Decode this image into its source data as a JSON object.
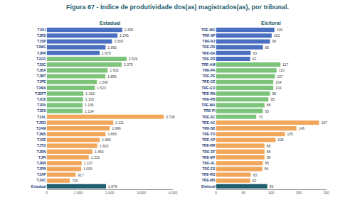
{
  "title": "Figura 67 - Índice de produtividade dos(as) magistrados(as), por tribunal.",
  "chart_data": [
    {
      "type": "bar",
      "title": "Estadual",
      "orientation": "horizontal",
      "data_labels": true,
      "grid": false,
      "categories": [
        "TJRJ",
        "TJRS",
        "TJSP",
        "TJMG",
        "TJPR",
        "TJGO",
        "TJSC",
        "TJBA",
        "TJMT",
        "TJPE",
        "TJMA",
        "TJDFT",
        "TJCE",
        "TJPA",
        "TJES",
        "TJAL",
        "TJRO",
        "TJAM",
        "TJMS",
        "TJSE",
        "TJTO",
        "TJRN",
        "TJPI",
        "TJRR",
        "TJPB",
        "TJAP",
        "TJAC",
        "Estadual"
      ],
      "values": [
        2395,
        2245,
        2069,
        1865,
        1678,
        2529,
        2375,
        1932,
        1859,
        1590,
        1523,
        1163,
        1152,
        1136,
        1134,
        3708,
        2111,
        1996,
        1866,
        1682,
        1603,
        1453,
        1332,
        1107,
        1093,
        917,
        729,
        1879
      ],
      "value_labels": [
        "2.395",
        "2.245",
        "2.069",
        "1.865",
        "1.678",
        "2.529",
        "2.375",
        "1.932",
        "1.859",
        "1.590",
        "1.523",
        "1.163",
        "1.152",
        "1.136",
        "1.134",
        "3.708",
        "2.111",
        "1.996",
        "1.866",
        "1.682",
        "1.603",
        "1.453",
        "1.332",
        "1.107",
        "1.093",
        "917",
        "729",
        "1.879"
      ],
      "colors": [
        "#4a6fc1",
        "#4a6fc1",
        "#4a6fc1",
        "#4a6fc1",
        "#4a6fc1",
        "#7cc47a",
        "#7cc47a",
        "#7cc47a",
        "#7cc47a",
        "#7cc47a",
        "#7cc47a",
        "#7cc47a",
        "#7cc47a",
        "#7cc47a",
        "#7cc47a",
        "#f2a65a",
        "#f2a65a",
        "#f2a65a",
        "#f2a65a",
        "#f2a65a",
        "#f2a65a",
        "#f2a65a",
        "#f2a65a",
        "#f2a65a",
        "#f2a65a",
        "#f2a65a",
        "#f2a65a",
        "#1f5e6e"
      ],
      "xlim": [
        0,
        4000
      ],
      "xticks": [
        0,
        {
          "value": 1000,
          "label": "1.000"
        },
        {
          "value": 2000,
          "label": "2.000"
        },
        {
          "value": 3000,
          "label": "3.000"
        },
        {
          "value": 4000,
          "label": "4.000"
        }
      ]
    },
    {
      "type": "bar",
      "title": "Eleitoral",
      "orientation": "horizontal",
      "data_labels": true,
      "grid": false,
      "categories": [
        "TRE-MG",
        "TRE-SP",
        "TRE-RJ",
        "TRE-RS",
        "TRE-BA",
        "TRE-PR",
        "TRE-AM",
        "TRE-PA",
        "TRE-PE",
        "TRE-CE",
        "TRE-GO",
        "TRE-RN",
        "TRE-PB",
        "TRE-MA",
        "TRE-PI",
        "TRE-SC",
        "TRE-AC",
        "TRE-SE",
        "TRE-TO",
        "TRE-AP",
        "TRE-RR",
        "TRE-DF",
        "TRE-MT",
        "TRE-AL",
        "TRE-ES",
        "TRE-RO",
        "TRE-MS",
        "Eleitoral"
      ],
      "values": [
        106,
        101,
        98,
        85,
        63,
        62,
        117,
        110,
        107,
        104,
        104,
        98,
        95,
        88,
        85,
        73,
        187,
        146,
        125,
        108,
        88,
        88,
        88,
        85,
        84,
        63,
        62,
        93
      ],
      "colors": [
        "#4a6fc1",
        "#4a6fc1",
        "#4a6fc1",
        "#4a6fc1",
        "#4a6fc1",
        "#4a6fc1",
        "#7cc47a",
        "#7cc47a",
        "#7cc47a",
        "#7cc47a",
        "#7cc47a",
        "#7cc47a",
        "#7cc47a",
        "#7cc47a",
        "#7cc47a",
        "#7cc47a",
        "#f2a65a",
        "#f2a65a",
        "#f2a65a",
        "#f2a65a",
        "#f2a65a",
        "#f2a65a",
        "#f2a65a",
        "#f2a65a",
        "#f2a65a",
        "#f2a65a",
        "#f2a65a",
        "#1f5e6e"
      ],
      "xlim": [
        0,
        200
      ],
      "xticks": [
        0,
        50,
        100,
        150,
        200
      ]
    }
  ]
}
